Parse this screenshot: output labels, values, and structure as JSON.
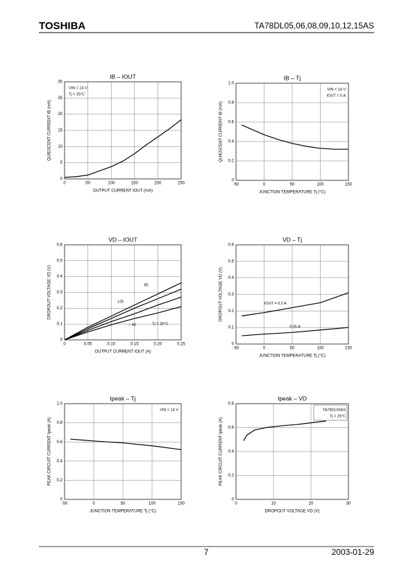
{
  "header": {
    "logo": "TOSHIBA",
    "part": "TA78DL05,06,08,09,10,12,15AS"
  },
  "footer": {
    "page": "7",
    "date": "2003-01-29"
  },
  "chart_data": [
    {
      "type": "line",
      "title": "IB – IOUT",
      "xlabel": "OUTPUT CURRENT IOUT (mA)",
      "ylabel": "QUIESCENT CURRENT IB (mA)",
      "annotations": [
        "VIN = 14 V",
        "Tj = 25°C"
      ],
      "x": [
        0,
        25,
        50,
        75,
        100,
        125,
        150,
        175,
        200,
        225,
        250
      ],
      "values": [
        0.5,
        0.7,
        1.2,
        2.5,
        3.8,
        5.5,
        7.8,
        10.5,
        13,
        15.5,
        18.3
      ],
      "color": "#000000",
      "xlim": [
        0,
        250
      ],
      "xticks": [
        0,
        50,
        100,
        150,
        200,
        250
      ],
      "ylim": [
        0,
        30
      ],
      "yticks": [
        0,
        5,
        10,
        15,
        20,
        25,
        30
      ],
      "grid": true
    },
    {
      "type": "line",
      "title": "IB – Tj",
      "xlabel": "JUNCTION TEMPERATURE Tj (°C)",
      "ylabel": "QUIESCENT CURRENT IB (mA)",
      "annotations": [
        "VIN = 14 V",
        "IOUT = 0 A"
      ],
      "x": [
        -40,
        -20,
        0,
        25,
        50,
        75,
        100,
        125,
        150
      ],
      "values": [
        0.57,
        0.52,
        0.47,
        0.42,
        0.38,
        0.35,
        0.33,
        0.32,
        0.32
      ],
      "color": "#000000",
      "xlim": [
        -50,
        150
      ],
      "xticks": [
        -50,
        0,
        50,
        100,
        150
      ],
      "ylim": [
        0,
        1
      ],
      "yticks": [
        0,
        0.2,
        0.4,
        0.6,
        0.8,
        {
          "value": 1,
          "label": "1.0"
        }
      ],
      "grid": true
    },
    {
      "type": "line",
      "title": "VD – IOUT",
      "xlabel": "OUTPUT CURRENT IOUT (A)",
      "ylabel": "DROPOUT VOLTAGE VD (V)",
      "x": [
        0,
        0.05,
        0.1,
        0.15,
        0.2,
        0.25
      ],
      "series": [
        {
          "name": "85",
          "color": "#000000",
          "values": [
            0,
            0.08,
            0.15,
            0.22,
            0.29,
            0.36
          ]
        },
        {
          "name": "125",
          "color": "#000000",
          "values": [
            0,
            0.07,
            0.135,
            0.2,
            0.26,
            0.32
          ]
        },
        {
          "name": "Tj = 25°C",
          "color": "#000000",
          "values": [
            0,
            0.06,
            0.115,
            0.165,
            0.22,
            0.27
          ]
        },
        {
          "name": "− 40",
          "color": "#000000",
          "values": [
            0,
            0.05,
            0.095,
            0.135,
            0.17,
            0.21
          ]
        }
      ],
      "xlim": [
        0,
        0.25
      ],
      "xticks": [
        0,
        0.05,
        {
          "value": 0.1,
          "label": "0.10"
        },
        0.15,
        {
          "value": 0.2,
          "label": "0.20"
        },
        0.25
      ],
      "ylim": [
        0,
        0.6
      ],
      "yticks": [
        0,
        0.1,
        0.2,
        0.3,
        0.4,
        0.5,
        0.6
      ],
      "grid": true
    },
    {
      "type": "line",
      "title": "VD – Tj",
      "xlabel": "JUNCTION TEMPERATURE Tj (°C)",
      "ylabel": "DROPOUT VOLTAGE VD (V)",
      "x": [
        -40,
        0,
        50,
        100,
        150
      ],
      "series": [
        {
          "name": "IOUT = 0.2 A",
          "color": "#000000",
          "values": [
            0.17,
            0.19,
            0.22,
            0.25,
            0.31
          ]
        },
        {
          "name": "0.05 A",
          "color": "#000000",
          "values": [
            0.05,
            0.06,
            0.07,
            0.085,
            0.1
          ]
        }
      ],
      "xlim": [
        -50,
        150
      ],
      "xticks": [
        -50,
        0,
        50,
        100,
        150
      ],
      "ylim": [
        0,
        0.6
      ],
      "yticks": [
        0,
        0.1,
        0.2,
        0.3,
        0.4,
        0.5,
        0.6
      ],
      "grid": true
    },
    {
      "type": "line",
      "title": "Ipeak – Tj",
      "xlabel": "JUNCTION TEMPERATURE Tj (°C)",
      "ylabel": "PEAK CIRCUIT CURRENT Ipeak (A)",
      "annotations": [
        "VIN = 14 V"
      ],
      "x": [
        -40,
        0,
        50,
        100,
        150
      ],
      "values": [
        0.63,
        0.61,
        0.59,
        0.56,
        0.52
      ],
      "color": "#000000",
      "xlim": [
        -50,
        150
      ],
      "xticks": [
        -50,
        0,
        50,
        100,
        150
      ],
      "ylim": [
        0,
        1
      ],
      "yticks": [
        0,
        0.2,
        0.4,
        0.6,
        0.8,
        {
          "value": 1,
          "label": "1.0"
        }
      ],
      "grid": true
    },
    {
      "type": "line",
      "title": "Ipeak – VD",
      "xlabel": "DROPOUT VOLTAGE VD (V)",
      "ylabel": "PEAK CIRCUIT CURRENT Ipeak (A)",
      "annotations": [
        "TA78DL05AS",
        "Tj = 25°C"
      ],
      "x": [
        2,
        3,
        5,
        8,
        12,
        16,
        20,
        24
      ],
      "values": [
        0.49,
        0.54,
        0.58,
        0.6,
        0.615,
        0.625,
        0.64,
        0.655
      ],
      "color": "#000000",
      "xlim": [
        0,
        30
      ],
      "xticks": [
        0,
        10,
        20,
        30
      ],
      "ylim": [
        0,
        0.8
      ],
      "yticks": [
        0,
        0.2,
        0.4,
        0.6,
        0.8
      ],
      "grid": true
    }
  ]
}
